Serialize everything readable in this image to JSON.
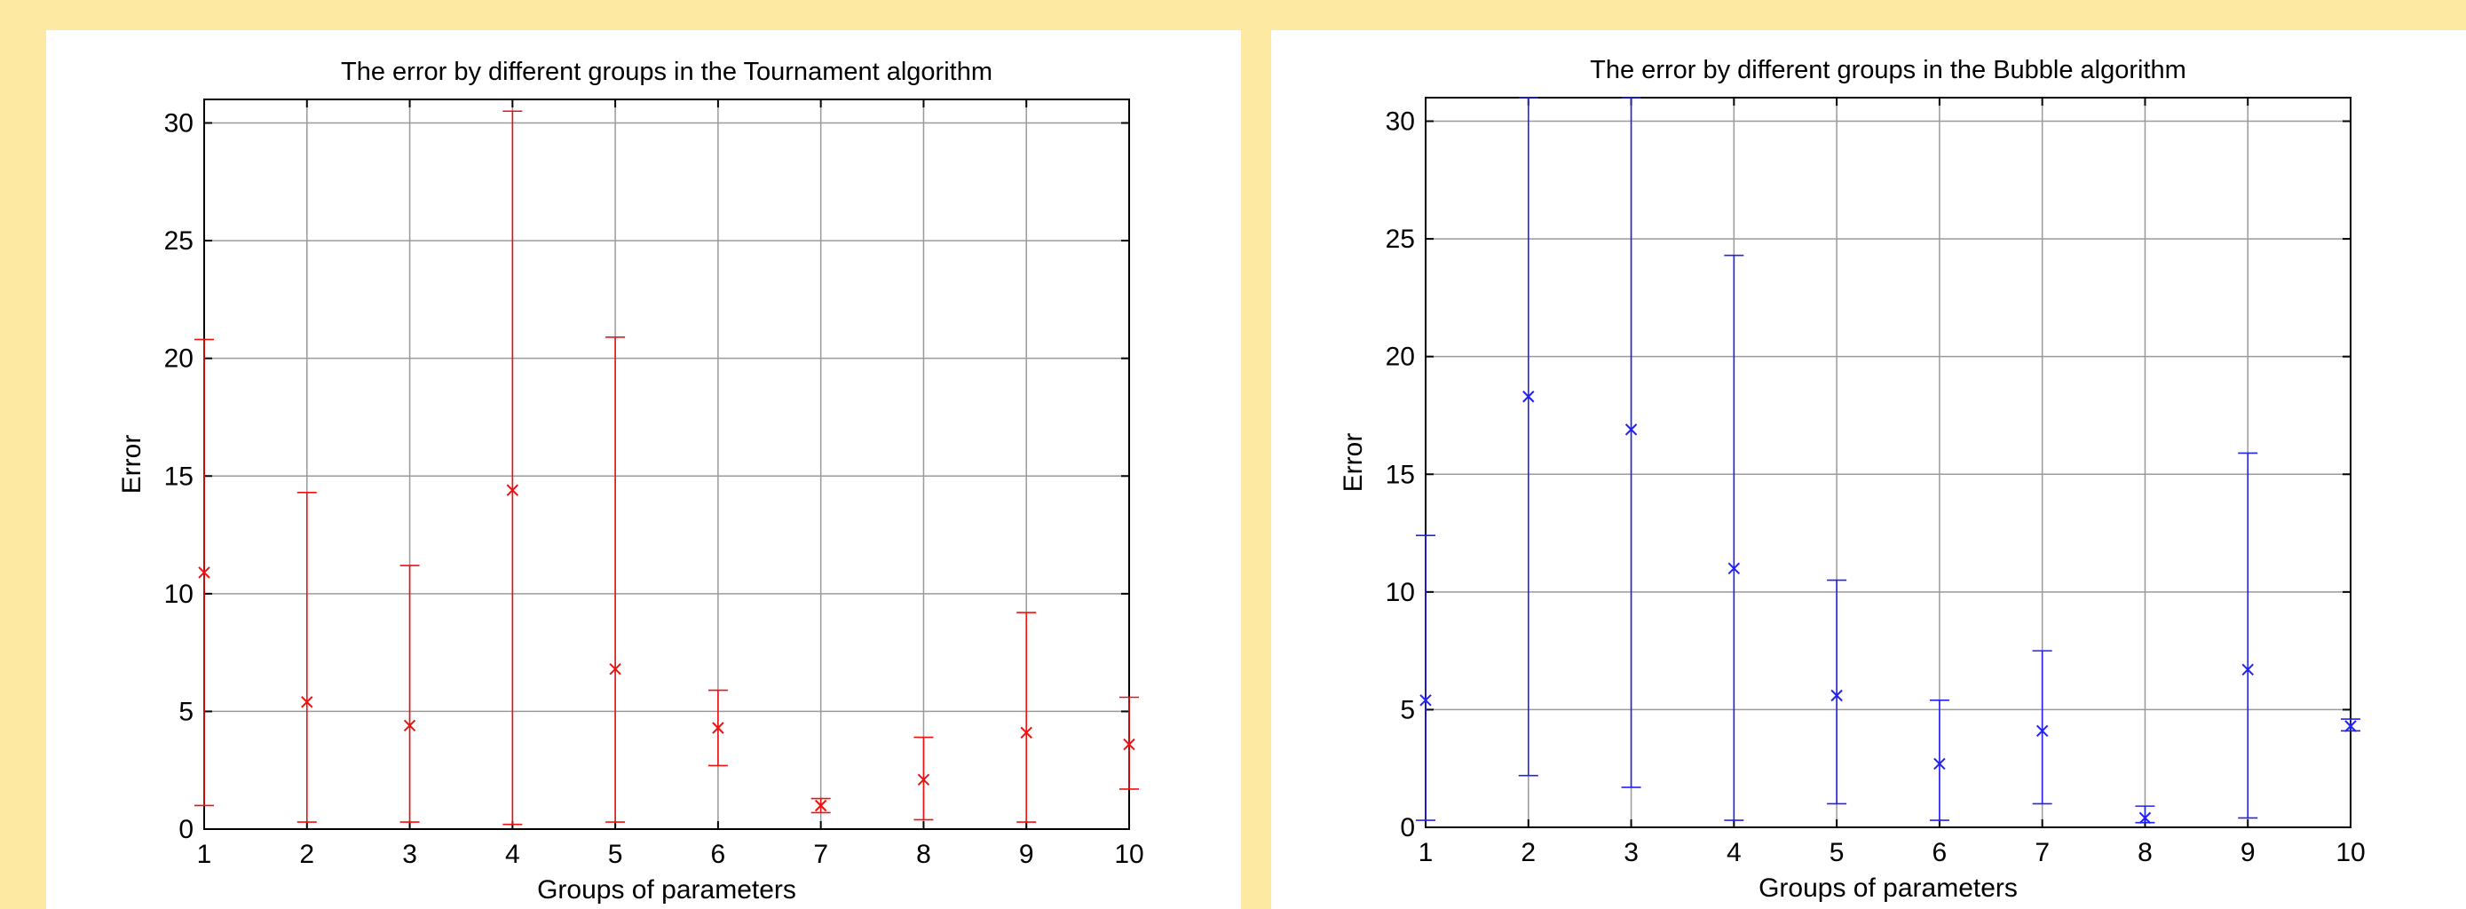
{
  "chart_data": [
    {
      "type": "errorbar",
      "title": "The error by different groups in the Tournament algorithm",
      "xlabel": "Groups of parameters",
      "ylabel": "Error",
      "xlim": [
        1,
        10
      ],
      "ylim": [
        0,
        31
      ],
      "xticks": [
        1,
        2,
        3,
        4,
        5,
        6,
        7,
        8,
        9,
        10
      ],
      "yticks": [
        0,
        5,
        10,
        15,
        20,
        25,
        30
      ],
      "grid": true,
      "color": "#ee1111",
      "series": [
        {
          "x": [
            1,
            2,
            3,
            4,
            5,
            6,
            7,
            8,
            9,
            10
          ],
          "y": [
            10.9,
            5.4,
            4.4,
            14.4,
            6.8,
            4.3,
            1.0,
            2.1,
            4.1,
            3.6
          ],
          "lower": [
            1.0,
            0.3,
            0.3,
            0.2,
            0.3,
            2.7,
            0.7,
            0.4,
            0.3,
            1.7
          ],
          "upper": [
            20.8,
            14.3,
            11.2,
            30.5,
            20.9,
            5.9,
            1.3,
            3.9,
            9.2,
            5.6
          ]
        }
      ]
    },
    {
      "type": "errorbar",
      "title": "The error by different groups in the Bubble algorithm",
      "xlabel": "Groups of parameters",
      "ylabel": "Error",
      "xlim": [
        1,
        10
      ],
      "ylim": [
        0,
        31
      ],
      "xticks": [
        1,
        2,
        3,
        4,
        5,
        6,
        7,
        8,
        9,
        10
      ],
      "yticks": [
        0,
        5,
        10,
        15,
        20,
        25,
        30
      ],
      "grid": true,
      "color": "#2222ee",
      "series": [
        {
          "x": [
            1,
            2,
            3,
            4,
            5,
            6,
            7,
            8,
            9,
            10
          ],
          "y": [
            5.4,
            18.3,
            16.9,
            11.0,
            5.6,
            2.7,
            4.1,
            0.4,
            6.7,
            4.3
          ],
          "lower": [
            0.3,
            2.2,
            1.7,
            0.3,
            1.0,
            0.3,
            1.0,
            0.2,
            0.4,
            4.1
          ],
          "upper": [
            12.4,
            31.0,
            31.0,
            24.3,
            10.5,
            5.4,
            7.5,
            0.9,
            15.9,
            4.6
          ]
        }
      ]
    }
  ]
}
